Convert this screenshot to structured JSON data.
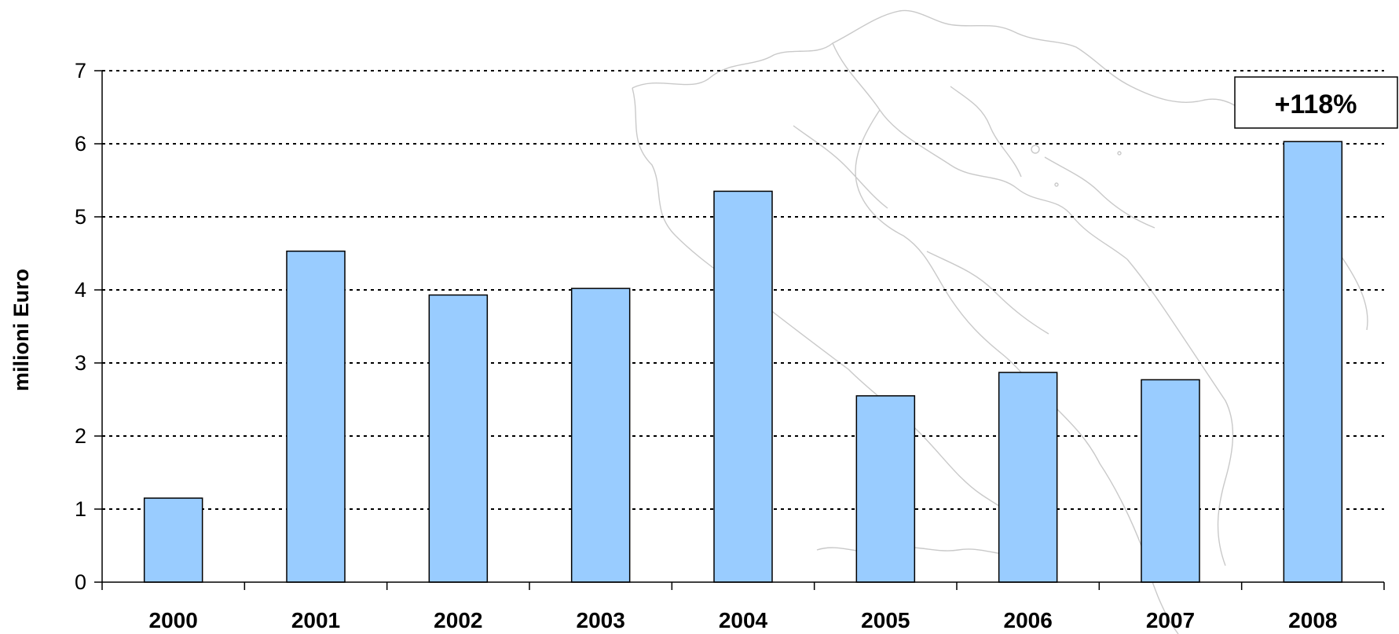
{
  "chart_data": {
    "type": "bar",
    "title": "",
    "ylabel": "milioni Euro",
    "xlabel": "",
    "categories": [
      "2000",
      "2001",
      "2002",
      "2003",
      "2004",
      "2005",
      "2006",
      "2007",
      "2008"
    ],
    "values": [
      1.15,
      4.53,
      3.93,
      4.02,
      5.35,
      2.55,
      2.87,
      2.77,
      6.03
    ],
    "ylim": [
      0,
      7
    ],
    "yticks": [
      "0",
      "1",
      "2",
      "3",
      "4",
      "5",
      "6",
      "7"
    ],
    "grid": "horizontal dotted",
    "bar_color": "#99ccff",
    "annotation": "+118%",
    "background_image": "map of Italy (faint outline)"
  }
}
